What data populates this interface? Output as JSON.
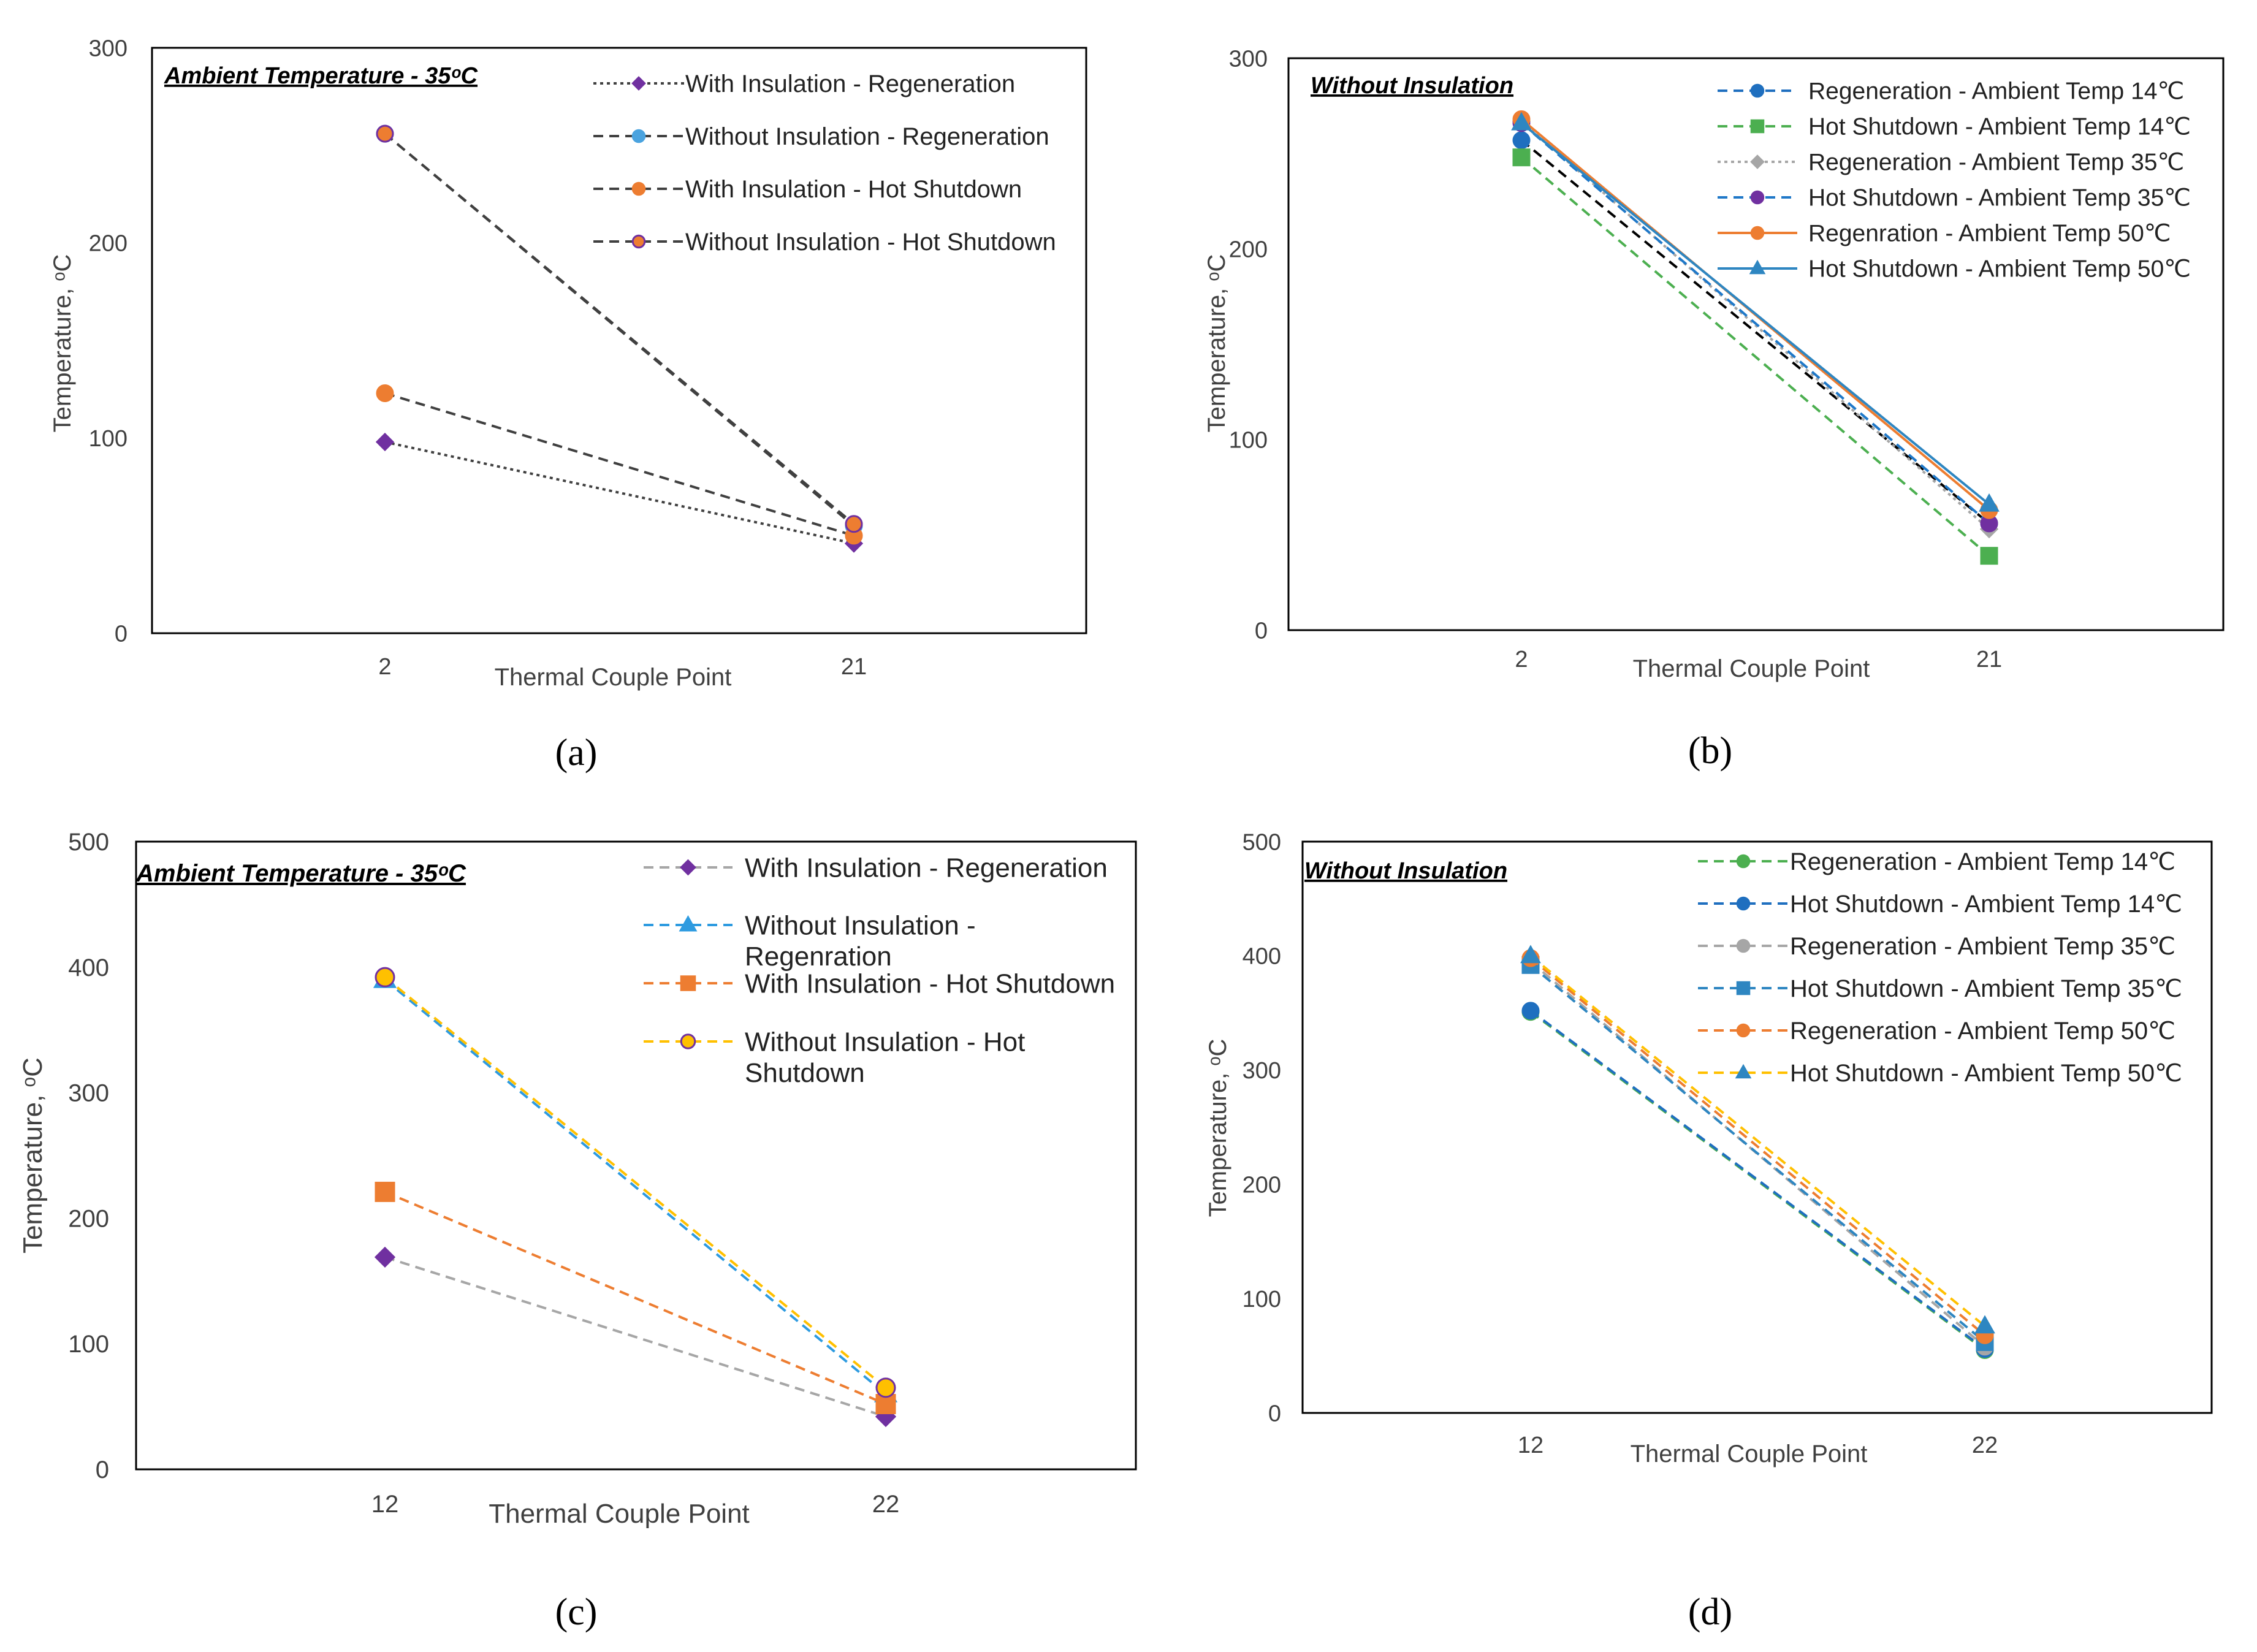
{
  "chart_data": [
    {
      "id": "a",
      "type": "line",
      "caption": "(a)",
      "title": "Ambient Temperature - 35ᵒC",
      "xlabel": "Thermal Couple Point",
      "ylabel": "Temperature, ᵒC",
      "categories": [
        "2",
        "21"
      ],
      "ylim": [
        0,
        300
      ],
      "yticks": [
        0,
        100,
        200,
        300
      ],
      "series": [
        {
          "name": "With Insulation - Regeneration",
          "values": [
            98,
            46
          ],
          "color": "#404040",
          "marker_color": "#7030a0",
          "marker": "diamond",
          "dash": "dot"
        },
        {
          "name": "Without Insulation - Regeneration",
          "values": [
            256,
            55
          ],
          "color": "#404040",
          "marker_color": "#4aa3df",
          "marker": "circle",
          "dash": "dash"
        },
        {
          "name": "With Insulation - Hot Shutdown",
          "values": [
            123,
            50
          ],
          "color": "#404040",
          "marker_color": "#ed7d31",
          "marker": "circle",
          "dash": "dash"
        },
        {
          "name": "Without Insulation - Hot Shutdown",
          "values": [
            256,
            56
          ],
          "color": "#404040",
          "marker_color": "#7030a0",
          "marker_fill": "#ed7d31",
          "marker": "circle",
          "dash": "dash"
        }
      ]
    },
    {
      "id": "b",
      "type": "line",
      "caption": "(b)",
      "title": "Without Insulation",
      "xlabel": "Thermal Couple Point",
      "ylabel": "Temperature, ᵒC",
      "categories": [
        "2",
        "21"
      ],
      "ylim": [
        0,
        300
      ],
      "yticks": [
        0,
        100,
        200,
        300
      ],
      "series": [
        {
          "name": "Regeneration - Ambient Temp 14℃",
          "values": [
            257,
            56
          ],
          "color": "#000000",
          "marker_color": "#1f6fbf",
          "marker": "circle",
          "dash": "dash",
          "legend_color": "#1f6fbf"
        },
        {
          "name": "Hot Shutdown - Ambient Temp 14℃",
          "values": [
            248,
            39
          ],
          "color": "#4caf50",
          "marker_color": "#4caf50",
          "marker": "square",
          "dash": "dash"
        },
        {
          "name": "Regeneration - Ambient Temp 35℃",
          "values": [
            267,
            53
          ],
          "color": "#a6a6a6",
          "marker_color": "#a6a6a6",
          "marker": "diamond",
          "dash": "dot"
        },
        {
          "name": "Hot Shutdown - Ambient Temp 35℃",
          "values": [
            266,
            56
          ],
          "color": "#1f78c8",
          "marker_color": "#7030a0",
          "marker": "circle",
          "dash": "dash"
        },
        {
          "name": "Regenration - Ambient Temp 50℃",
          "values": [
            268,
            63
          ],
          "color": "#ed7d31",
          "marker_color": "#ed7d31",
          "marker": "circle",
          "dash": "solid"
        },
        {
          "name": "Hot Shutdown - Ambient Temp 50℃",
          "values": [
            266,
            66
          ],
          "color": "#2e86c1",
          "marker_color": "#2e86c1",
          "marker": "triangle",
          "dash": "solid"
        }
      ]
    },
    {
      "id": "c",
      "type": "line",
      "caption": "(c)",
      "title": "Ambient Temperature - 35ᵒC",
      "xlabel": "Thermal Couple Point",
      "ylabel": "Temperature, ᵒC",
      "categories": [
        "12",
        "22"
      ],
      "ylim": [
        0,
        500
      ],
      "yticks": [
        0,
        100,
        200,
        300,
        400,
        500
      ],
      "series": [
        {
          "name": "With Insulation - Regeneration",
          "values": [
            169,
            42
          ],
          "color": "#a6a6a6",
          "marker_color": "#7030a0",
          "marker": "diamond",
          "dash": "dash"
        },
        {
          "name": "Without Insulation - Regenration",
          "values": [
            390,
            60
          ],
          "color": "#2e9be0",
          "marker_color": "#2e9be0",
          "marker": "triangle",
          "dash": "dash"
        },
        {
          "name": "With Insulation - Hot Shutdown",
          "values": [
            221,
            52
          ],
          "color": "#ed7d31",
          "marker_color": "#ed7d31",
          "marker": "square",
          "dash": "dash"
        },
        {
          "name": "Without Insulation - Hot Shutdown",
          "values": [
            392,
            65
          ],
          "color": "#ffc000",
          "marker_color": "#7030a0",
          "marker_fill": "#ffc000",
          "marker": "circle",
          "dash": "dash"
        }
      ]
    },
    {
      "id": "d",
      "type": "line",
      "caption": "(d)",
      "title": "Without Insulation",
      "xlabel": "Thermal Couple Point",
      "ylabel": "Temperature, ᵒC",
      "categories": [
        "12",
        "22"
      ],
      "ylim": [
        0,
        500
      ],
      "yticks": [
        0,
        100,
        200,
        300,
        400,
        500
      ],
      "series": [
        {
          "name": "Regeneration - Ambient Temp 14℃",
          "values": [
            351,
            55
          ],
          "color": "#4caf50",
          "marker_color": "#4caf50",
          "marker": "circle",
          "dash": "dash"
        },
        {
          "name": "Hot Shutdown - Ambient Temp 14℃",
          "values": [
            352,
            56
          ],
          "color": "#1f6fbf",
          "marker_color": "#1f6fbf",
          "marker": "circle",
          "dash": "dash"
        },
        {
          "name": "Regeneration - Ambient Temp 35℃",
          "values": [
            395,
            58
          ],
          "color": "#a6a6a6",
          "marker_color": "#a6a6a6",
          "marker": "circle",
          "dash": "dash"
        },
        {
          "name": "Hot Shutdown - Ambient Temp 35℃",
          "values": [
            392,
            62
          ],
          "color": "#2e86c1",
          "marker_color": "#2e86c1",
          "marker": "square",
          "dash": "dash"
        },
        {
          "name": "Regeneration - Ambient Temp 50℃",
          "values": [
            398,
            68
          ],
          "color": "#ed7d31",
          "marker_color": "#ed7d31",
          "marker": "circle",
          "dash": "dash"
        },
        {
          "name": "Hot Shutdown - Ambient Temp 50℃",
          "values": [
            400,
            76
          ],
          "color": "#ffc000",
          "marker_color": "#2e86c1",
          "marker": "triangle",
          "dash": "dash"
        }
      ]
    }
  ]
}
